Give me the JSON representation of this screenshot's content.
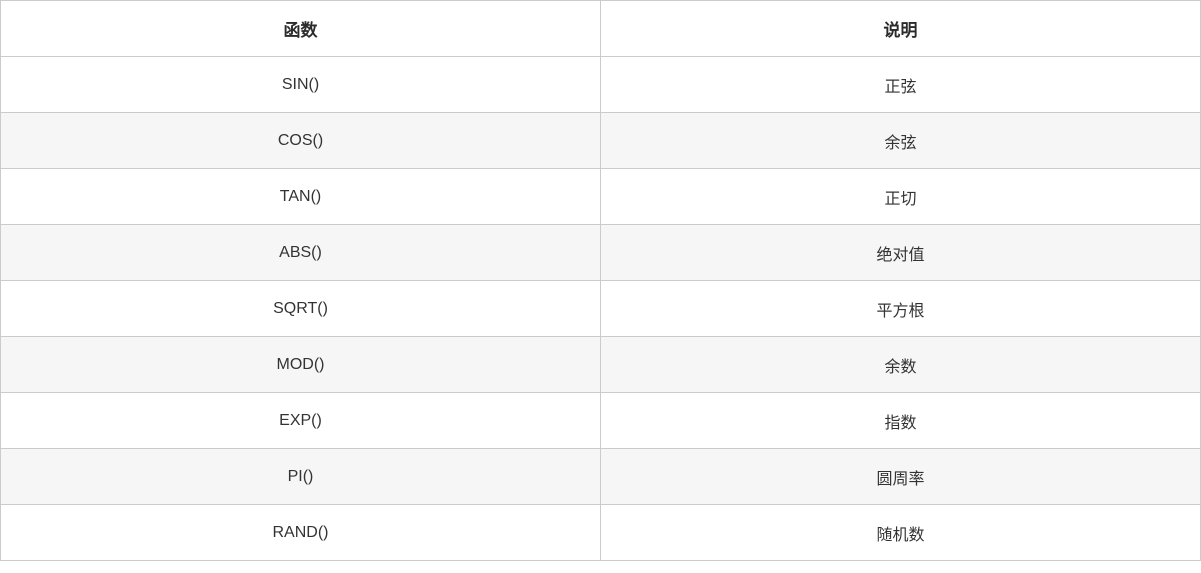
{
  "table": {
    "columns": [
      {
        "label": "函数"
      },
      {
        "label": "说明"
      }
    ],
    "rows": [
      {
        "function": "SIN()",
        "description": "正弦"
      },
      {
        "function": "COS()",
        "description": "余弦"
      },
      {
        "function": "TAN()",
        "description": "正切"
      },
      {
        "function": "ABS()",
        "description": "绝对值"
      },
      {
        "function": "SQRT()",
        "description": "平方根"
      },
      {
        "function": "MOD()",
        "description": "余数"
      },
      {
        "function": "EXP()",
        "description": "指数"
      },
      {
        "function": "PI()",
        "description": "圆周率"
      },
      {
        "function": "RAND()",
        "description": "随机数"
      }
    ],
    "colors": {
      "border": "#cbcbcb",
      "stripe": "#f6f6f7",
      "text": "#333333",
      "header_text": "#2b2b2b",
      "background": "#ffffff"
    }
  }
}
